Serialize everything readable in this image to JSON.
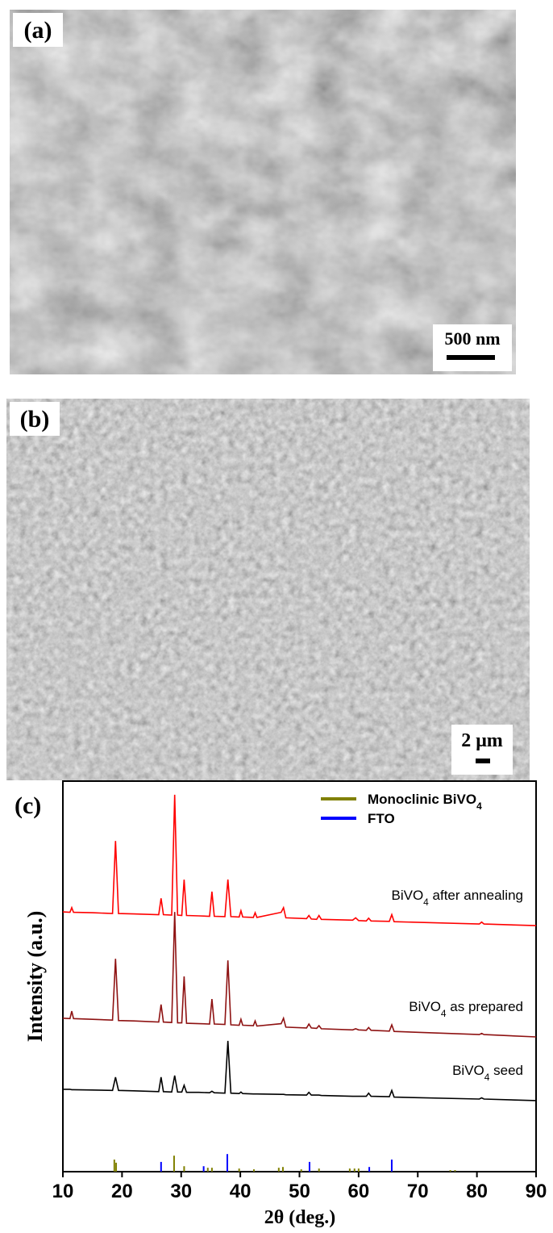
{
  "panels": [
    {
      "label": "(a)",
      "scale_bar": "500 nm"
    },
    {
      "label": "(b)",
      "scale_bar": "2 μm"
    }
  ],
  "chart_data": {
    "type": "line",
    "panel_label": "(c)",
    "x_label": "2θ (deg.)",
    "y_label": "Intensity (a.u.)",
    "xlim": [
      10,
      90
    ],
    "xticks": [
      10,
      20,
      30,
      40,
      50,
      60,
      70,
      80,
      90
    ],
    "ylim": [
      0,
      100
    ],
    "legend": "upper right",
    "x": [
      10,
      11.2,
      11.5,
      11.8,
      15,
      18.4,
      18.9,
      19.4,
      22,
      26.2,
      26.6,
      27,
      28.4,
      28.9,
      29.4,
      30.1,
      30.5,
      30.9,
      33,
      34.8,
      35.2,
      35.6,
      37.4,
      37.9,
      38.4,
      39.8,
      40.1,
      40.4,
      42.2,
      42.5,
      42.8,
      46.9,
      47.3,
      47.7,
      51.2,
      51.6,
      52,
      52.9,
      53.3,
      53.7,
      59,
      59.5,
      60,
      61.3,
      61.7,
      62.1,
      65.2,
      65.6,
      66,
      80.4,
      80.8,
      81.2,
      90
    ],
    "series": [
      {
        "name": "BiVO4 after annealing",
        "color": "#ff0000",
        "values": [
          66.5,
          66.4,
          67.6,
          66.4,
          66.3,
          66.1,
          84.7,
          66.1,
          66.0,
          65.8,
          70,
          65.8,
          65.7,
          96.5,
          65.7,
          65.6,
          74.8,
          65.6,
          65.5,
          65.4,
          71.7,
          65.4,
          65.3,
          74.8,
          65.3,
          65.2,
          66.8,
          65.2,
          65.1,
          66.3,
          65.1,
          66.4,
          67.6,
          65.0,
          64.8,
          65.6,
          64.7,
          64.6,
          65.6,
          64.6,
          64.4,
          65.0,
          64.3,
          64.2,
          64.9,
          64.2,
          64.1,
          65.8,
          64.0,
          63.4,
          63.9,
          63.4,
          63.0
        ]
      },
      {
        "name": "BiVO4 as prepared",
        "color": "#8e1212",
        "values": [
          39.3,
          39.2,
          41.1,
          39.2,
          39.0,
          38.8,
          54.5,
          38.7,
          38.6,
          38.3,
          42.8,
          38.3,
          38.2,
          66.5,
          38.1,
          38.1,
          50,
          38.0,
          37.9,
          37.8,
          44.2,
          37.8,
          37.7,
          54.1,
          37.6,
          37.5,
          39.0,
          37.5,
          37.4,
          38.6,
          37.3,
          37.9,
          39.3,
          37.0,
          36.8,
          37.8,
          36.8,
          36.7,
          37.4,
          36.6,
          36.3,
          36.6,
          36.3,
          36.2,
          36.9,
          36.2,
          36.0,
          37.6,
          35.9,
          35.1,
          35.4,
          35.1,
          34.5
        ]
      },
      {
        "name": "BiVO4 seed",
        "color": "#000000",
        "values": [
          21.1,
          21.1,
          21.0,
          21.0,
          20.9,
          20.8,
          24.2,
          20.8,
          20.7,
          20.5,
          24.2,
          20.5,
          20.4,
          24.6,
          20.4,
          20.4,
          22.1,
          20.3,
          20.3,
          20.2,
          20.6,
          20.2,
          20.1,
          33.5,
          20.1,
          20.0,
          20.4,
          20.0,
          19.9,
          19.9,
          19.9,
          19.8,
          19.8,
          19.7,
          19.6,
          20.3,
          19.6,
          19.6,
          19.6,
          19.5,
          19.3,
          19.3,
          19.3,
          19.3,
          20.1,
          19.3,
          19.2,
          20.8,
          19.1,
          18.6,
          18.9,
          18.6,
          18.2
        ]
      },
      {
        "name": "Monoclinic BiVO4",
        "color": "#808000",
        "type": "stick",
        "x": [
          18.7,
          19,
          28.8,
          30.5,
          34.5,
          35.2,
          39.8,
          42.3,
          46.5,
          47.2,
          50.3,
          53.3,
          58.5,
          59.3,
          60,
          75.5,
          76.3
        ],
        "values": [
          3.1,
          2.3,
          4.1,
          1.4,
          1,
          1,
          0.8,
          0.6,
          1,
          1.2,
          0.6,
          0.8,
          0.8,
          0.8,
          0.8,
          0.4,
          0.4
        ]
      },
      {
        "name": "FTO",
        "color": "#0000ff",
        "type": "stick",
        "x": [
          26.6,
          33.8,
          37.8,
          51.7,
          61.8,
          65.6
        ],
        "values": [
          2.5,
          1.4,
          4.5,
          2.5,
          1.2,
          3.1
        ]
      }
    ]
  }
}
